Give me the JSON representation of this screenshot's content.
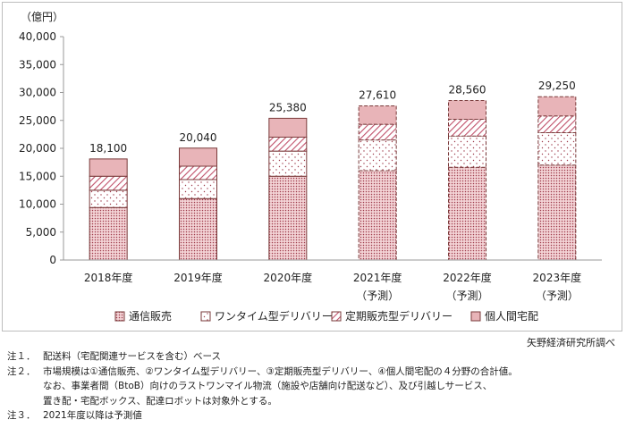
{
  "chart_data": {
    "type": "bar",
    "stacked": true,
    "y_unit_label": "（億円）",
    "ylim": [
      0,
      40000
    ],
    "y_ticks": [
      "0",
      "5,000",
      "10,000",
      "15,000",
      "20,000",
      "25,000",
      "30,000",
      "35,000",
      "40,000"
    ],
    "categories": [
      {
        "label": "2018年度",
        "sublabel": "",
        "forecast": false
      },
      {
        "label": "2019年度",
        "sublabel": "",
        "forecast": false
      },
      {
        "label": "2020年度",
        "sublabel": "",
        "forecast": false
      },
      {
        "label": "2021年度",
        "sublabel": "（予測）",
        "forecast": true
      },
      {
        "label": "2022年度",
        "sublabel": "（予測）",
        "forecast": true
      },
      {
        "label": "2023年度",
        "sublabel": "（予測）",
        "forecast": true
      }
    ],
    "series": [
      {
        "name": "通信販売",
        "pattern": "dense-dots",
        "values": [
          9400,
          11000,
          15000,
          16000,
          16600,
          17000
        ]
      },
      {
        "name": "ワンタイム型デリバリー",
        "pattern": "light-dots",
        "values": [
          3100,
          3400,
          4500,
          5500,
          5600,
          5800
        ]
      },
      {
        "name": "定期販売型デリバリー",
        "pattern": "diagonal-hatch",
        "values": [
          2500,
          2400,
          2500,
          2800,
          3000,
          3000
        ]
      },
      {
        "name": "個人間宅配",
        "pattern": "solid-pink",
        "values": [
          3100,
          3240,
          3380,
          3310,
          3360,
          3450
        ]
      }
    ],
    "totals": [
      "18,100",
      "20,040",
      "25,380",
      "27,610",
      "28,560",
      "29,250"
    ],
    "grid": false,
    "legend_position": "bottom"
  },
  "colors": {
    "bar_outline": "#7a3b3b",
    "pink": "#e8b4b8",
    "dot_dark": "#9e3a4a",
    "hatch": "#c0506a",
    "axis": "#999999"
  },
  "source": "矢野経済研究所調べ",
  "notes": [
    {
      "label": "注１．",
      "lines": [
        "配送料（宅配関連サービスを含む）ベース"
      ]
    },
    {
      "label": "注２．",
      "lines": [
        "市場規模は①通信販売、②ワンタイム型デリバリー、③定期販売型デリバリー、④個人間宅配の４分野の合計値。",
        "なお、事業者間（BtoB）向けのラストワンマイル物流（施設や店舗向け配送など）、及び引越しサービス、",
        "置き配・宅配ボックス、配達ロボットは対象外とする。"
      ]
    },
    {
      "label": "注３．",
      "lines": [
        "2021年度以降は予測値"
      ]
    }
  ]
}
